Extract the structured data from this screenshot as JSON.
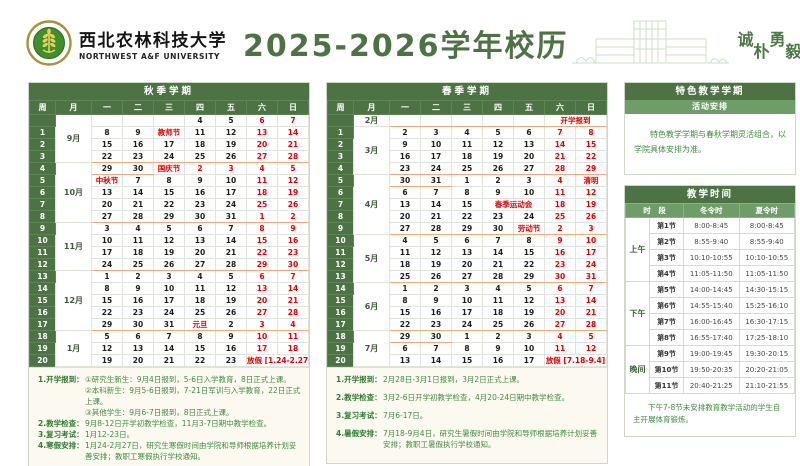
{
  "header": {
    "university_cn": "西北农林科技大学",
    "university_en": "NORTHWEST A&F UNIVERSITY",
    "title": "2025-2026学年校历",
    "motto": [
      "诚",
      "朴",
      "勇",
      "毅"
    ]
  },
  "colors": {
    "dark_green": "#4d7345",
    "medium_green": "#6f9d68",
    "accent_red": "#e60000",
    "note_green": "#3e8b3e",
    "month_separator_orange": "#f0ad72"
  },
  "weekday_headers": [
    "周",
    "月",
    "一",
    "二",
    "三",
    "四",
    "五",
    "六",
    "日"
  ],
  "fall": {
    "title": "秋季学期",
    "months": [
      {
        "label": "9月",
        "rows": 4
      },
      {
        "label": "10月",
        "rows": 5
      },
      {
        "label": "11月",
        "rows": 4
      },
      {
        "label": "12月",
        "rows": 5
      },
      {
        "label": "1月",
        "rows": 3
      }
    ],
    "rows": [
      {
        "w": "",
        "d": [
          "",
          "",
          "",
          "4",
          "5",
          "*6",
          "*7"
        ]
      },
      {
        "w": "1",
        "d": [
          "8",
          "9",
          "*教师节",
          "11",
          "12",
          "*13",
          "*14"
        ]
      },
      {
        "w": "2",
        "d": [
          "15",
          "16",
          "17",
          "18",
          "19",
          "*20",
          "*21"
        ]
      },
      {
        "w": "3",
        "sep": true,
        "d": [
          "22",
          "23",
          "24",
          "25",
          "26",
          "*27",
          "*28"
        ]
      },
      {
        "w": "4",
        "d": [
          "_29",
          "_30",
          "*国庆节",
          "*2",
          "*3",
          "*4",
          "*5"
        ]
      },
      {
        "w": "5",
        "d": [
          "*中秋节",
          "7",
          "8",
          "9",
          "10",
          "*11",
          "*12"
        ]
      },
      {
        "w": "6",
        "d": [
          "13",
          "14",
          "15",
          "16",
          "17",
          "*18",
          "*19"
        ]
      },
      {
        "w": "7",
        "d": [
          "20",
          "21",
          "22",
          "23",
          "24",
          "*25",
          "*26"
        ]
      },
      {
        "w": "8",
        "sep": true,
        "d": [
          "27",
          "28",
          "29",
          "30",
          "31",
          "*1",
          "*2"
        ]
      },
      {
        "w": "9",
        "d": [
          "3",
          "4",
          "5",
          "6",
          "7",
          "*8",
          "*9"
        ]
      },
      {
        "w": "10",
        "d": [
          "10",
          "11",
          "12",
          "13",
          "14",
          "*15",
          "*16"
        ]
      },
      {
        "w": "11",
        "d": [
          "17",
          "18",
          "19",
          "20",
          "21",
          "*22",
          "*23"
        ]
      },
      {
        "w": "12",
        "sep": true,
        "d": [
          "24",
          "25",
          "26",
          "27",
          "28",
          "*29",
          "*30"
        ]
      },
      {
        "w": "13",
        "d": [
          "1",
          "2",
          "3",
          "4",
          "5",
          "*6",
          "*7"
        ]
      },
      {
        "w": "14",
        "d": [
          "8",
          "9",
          "10",
          "11",
          "12",
          "*13",
          "*14"
        ]
      },
      {
        "w": "15",
        "d": [
          "15",
          "16",
          "17",
          "18",
          "19",
          "*20",
          "*21"
        ]
      },
      {
        "w": "16",
        "d": [
          "22",
          "23",
          "24",
          "25",
          "26",
          "*27",
          "*28"
        ]
      },
      {
        "w": "17",
        "sep": true,
        "d": [
          "_29",
          "_30",
          "_31",
          "*元旦",
          "2",
          "*3",
          "*4"
        ]
      },
      {
        "w": "18",
        "d": [
          "5",
          "6",
          "7",
          "8",
          "9",
          "*10",
          "*11"
        ]
      },
      {
        "w": "19",
        "d": [
          "12",
          "13",
          "14",
          "15",
          "16",
          "*17",
          "*18"
        ]
      },
      {
        "w": "20",
        "d": [
          "19",
          "20",
          "21",
          "22",
          "23",
          {
            "t": "放假 [1.24-2.27]",
            "red": true,
            "span": 2
          }
        ]
      }
    ],
    "notes": [
      {
        "label": "1.开学报到：",
        "text": "①研究生新生：9月4日报到，5-6日入学教育，8日正式上课。"
      },
      {
        "label": "",
        "text": "②本科新生：9月5-6日报到，7-21日军训与入学教育，22日正式上课。"
      },
      {
        "label": "",
        "text": "③其他学生：9月6-7日报到，8日正式上课。"
      },
      {
        "label": "2.教学检查：",
        "text": "9月8-12日开学初教学检查，11月3-7日期中教学检查。"
      },
      {
        "label": "3.复习考试：",
        "text": "1月12-23日。"
      },
      {
        "label": "4.寒假安排：",
        "text": "1月24-2月27日，研究生寒假时间由学院和导师根据培养计划妥善安排；教职工寒假执行学校通知。"
      }
    ]
  },
  "spring": {
    "title": "春季学期",
    "months": [
      {
        "label": "2月",
        "rows": 1
      },
      {
        "label": "3月",
        "rows": 4
      },
      {
        "label": "4月",
        "rows": 5
      },
      {
        "label": "5月",
        "rows": 4
      },
      {
        "label": "6月",
        "rows": 4
      },
      {
        "label": "7月",
        "rows": 3
      }
    ],
    "rows": [
      {
        "w": "",
        "sep": true,
        "d": [
          "",
          "",
          "",
          "",
          "",
          {
            "t": "开学报到",
            "red": true,
            "span": 2
          }
        ]
      },
      {
        "w": "1",
        "d": [
          "2",
          "3",
          "4",
          "5",
          "6",
          "*7",
          "*8"
        ]
      },
      {
        "w": "2",
        "d": [
          "9",
          "10",
          "11",
          "12",
          "13",
          "*14",
          "*15"
        ]
      },
      {
        "w": "3",
        "d": [
          "16",
          "17",
          "18",
          "19",
          "20",
          "*21",
          "*22"
        ]
      },
      {
        "w": "4",
        "sep": true,
        "d": [
          "23",
          "24",
          "25",
          "26",
          "27",
          "*28",
          "*29"
        ]
      },
      {
        "w": "5",
        "d": [
          "_30",
          "_31",
          "1",
          "2",
          "3",
          "*4",
          "*清明"
        ]
      },
      {
        "w": "6",
        "d": [
          "6",
          "7",
          "8",
          "9",
          "10",
          "*11",
          "*12"
        ]
      },
      {
        "w": "7",
        "d": [
          "13",
          "14",
          "15",
          {
            "t": "春季运动会",
            "red": true,
            "span": 2
          },
          "*18",
          "*19"
        ]
      },
      {
        "w": "8",
        "d": [
          "20",
          "21",
          "22",
          "23",
          "24",
          "*25",
          "*26"
        ]
      },
      {
        "w": "9",
        "sep": true,
        "d": [
          "27",
          "28",
          "29",
          "30",
          "*劳动节",
          "*2",
          "*3"
        ]
      },
      {
        "w": "10",
        "d": [
          "4",
          "5",
          "6",
          "7",
          "8",
          "*9",
          "*10"
        ]
      },
      {
        "w": "11",
        "d": [
          "11",
          "12",
          "13",
          "14",
          "15",
          "*16",
          "*17"
        ]
      },
      {
        "w": "12",
        "d": [
          "18",
          "19",
          "20",
          "21",
          "22",
          "*23",
          "*24"
        ]
      },
      {
        "w": "13",
        "sep": true,
        "d": [
          "25",
          "26",
          "27",
          "28",
          "29",
          "*30",
          "*31"
        ]
      },
      {
        "w": "14",
        "d": [
          "1",
          "2",
          "3",
          "4",
          "5",
          "*6",
          "*7"
        ]
      },
      {
        "w": "15",
        "d": [
          "8",
          "9",
          "10",
          "11",
          "12",
          "*13",
          "*14"
        ]
      },
      {
        "w": "16",
        "d": [
          "15",
          "16",
          "17",
          "18",
          "19",
          "*20",
          "*21"
        ]
      },
      {
        "w": "17",
        "sep": true,
        "d": [
          "22",
          "23",
          "24",
          "25",
          "26",
          "*27",
          "*28"
        ]
      },
      {
        "w": "18",
        "d": [
          "_29",
          "_30",
          "1",
          "2",
          "3",
          "*4",
          "*5"
        ]
      },
      {
        "w": "19",
        "d": [
          "6",
          "7",
          "8",
          "9",
          "10",
          "*11",
          "*12"
        ]
      },
      {
        "w": "20",
        "d": [
          "13",
          "14",
          "15",
          "16",
          "17",
          {
            "t": "放假 [7.18-9.4]",
            "red": true,
            "span": 2
          }
        ]
      }
    ],
    "notes": [
      {
        "label": "1.开学报到：",
        "text": "2月28日-3月1日报到，3月2日正式上课。"
      },
      {
        "label": "2.教学检查：",
        "text": "3月2-6日开学初教学检查，4月20-24日期中教学检查。"
      },
      {
        "label": "3.复习考试：",
        "text": "7月6-17日。"
      },
      {
        "label": "4.暑假安排：",
        "text": "7月18-9月4日，研究生暑假时间由学院和导师根据培养计划妥善安排；教职工暑假执行学校通知。"
      }
    ]
  },
  "special_semester": {
    "title": "特色教学学期",
    "subtitle": "活动安排",
    "text": "特色教学学期与春秋学期灵活组合，以学院具体安排为准。"
  },
  "teaching_time": {
    "title": "教学时间",
    "headers": {
      "period": "时　段",
      "winter": "冬令时",
      "summer": "夏令时"
    },
    "sections": [
      {
        "label": "上午",
        "rows": [
          [
            "第1节",
            "8:00-8:45",
            "8:00-8:45"
          ],
          [
            "第2节",
            "8:55-9:40",
            "8:55-9:40"
          ],
          [
            "第3节",
            "10:10-10:55",
            "10:10-10:55"
          ],
          [
            "第4节",
            "11:05-11:50",
            "11:05-11:50"
          ]
        ]
      },
      {
        "label": "下午",
        "rows": [
          [
            "第5节",
            "14:00-14:45",
            "14:30-15:15"
          ],
          [
            "第6节",
            "14:55-15:40",
            "15:25-16:10"
          ],
          [
            "第7节",
            "16:00-16:45",
            "16:30-17:15"
          ],
          [
            "第8节",
            "16:55-17:40",
            "17:25-18:10"
          ]
        ]
      },
      {
        "label": "晚间",
        "rows": [
          [
            "第9节",
            "19:00-19:45",
            "19:30-20:15"
          ],
          [
            "第10节",
            "19:50-20:35",
            "20:20-21:05"
          ],
          [
            "第11节",
            "20:40-21:25",
            "21:10-21:55"
          ]
        ]
      }
    ],
    "footnote": "下午7-8节未安排教育教学活动的学生自主开展体育锻炼。"
  }
}
